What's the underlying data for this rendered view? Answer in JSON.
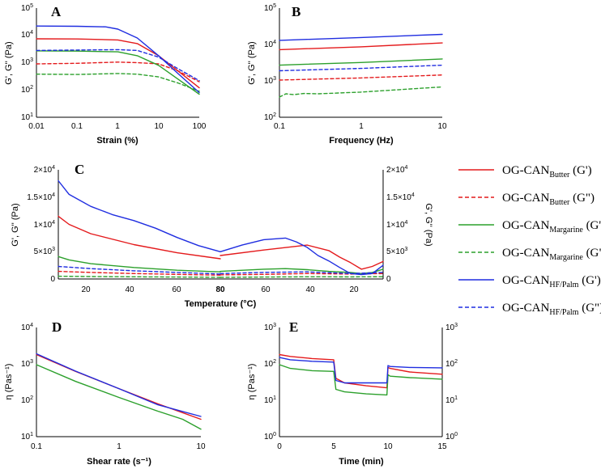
{
  "colors": {
    "butter": "#e41a1c",
    "margarine": "#2ca02c",
    "hfpalm": "#1f2de0"
  },
  "legend": [
    {
      "base": "OG-CAN",
      "sub": "Butter",
      "suffix": " (G')",
      "color": "#e41a1c",
      "dashed": false
    },
    {
      "base": "OG-CAN",
      "sub": "Butter",
      "suffix": " (G\")",
      "color": "#e41a1c",
      "dashed": true
    },
    {
      "base": "OG-CAN",
      "sub": "Margarine",
      "suffix": " (G')",
      "color": "#2ca02c",
      "dashed": false
    },
    {
      "base": "OG-CAN",
      "sub": "Margarine",
      "suffix": " (G\")",
      "color": "#2ca02c",
      "dashed": true
    },
    {
      "base": "OG-CAN",
      "sub": "HF/Palm",
      "suffix": " (G')",
      "color": "#1f2de0",
      "dashed": false
    },
    {
      "base": "OG-CAN",
      "sub": "HF/Palm",
      "suffix": " (G\")",
      "color": "#1f2de0",
      "dashed": true
    }
  ],
  "chart_data": [
    {
      "panel": "A",
      "type": "line",
      "xlabel": "Strain (%)",
      "ylabel": "G', G'' (Pa)",
      "xscale": "log",
      "yscale": "log",
      "xlim": [
        0.01,
        100
      ],
      "ylim": [
        10,
        100000
      ],
      "xticks": [
        "0.01",
        "0.1",
        "1",
        "10",
        "100"
      ],
      "yticks": [
        "10^1",
        "10^2",
        "10^3",
        "10^4",
        "10^5"
      ],
      "series": [
        {
          "name": "Butter G'",
          "color": "#e41a1c",
          "dashed": false,
          "x": [
            0.01,
            0.1,
            1,
            3,
            10,
            30,
            100
          ],
          "y": [
            7500,
            7400,
            6800,
            5000,
            1800,
            500,
            120
          ]
        },
        {
          "name": "Butter G\"",
          "color": "#e41a1c",
          "dashed": true,
          "x": [
            0.01,
            0.1,
            1,
            3,
            10,
            30,
            100
          ],
          "y": [
            900,
            950,
            1050,
            1000,
            900,
            500,
            200
          ]
        },
        {
          "name": "Margarine G'",
          "color": "#2ca02c",
          "dashed": false,
          "x": [
            0.01,
            0.1,
            1,
            3,
            10,
            30,
            100
          ],
          "y": [
            2700,
            2650,
            2500,
            1800,
            800,
            250,
            70
          ]
        },
        {
          "name": "Margarine G\"",
          "color": "#2ca02c",
          "dashed": true,
          "x": [
            0.01,
            0.1,
            1,
            3,
            10,
            30,
            100
          ],
          "y": [
            380,
            370,
            400,
            380,
            300,
            180,
            90
          ]
        },
        {
          "name": "HF/Palm G'",
          "color": "#1f2de0",
          "dashed": false,
          "x": [
            0.01,
            0.1,
            0.5,
            1,
            3,
            10,
            30,
            100
          ],
          "y": [
            22000,
            21500,
            20500,
            17000,
            8000,
            1800,
            400,
            80
          ]
        },
        {
          "name": "HF/Palm G\"",
          "color": "#1f2de0",
          "dashed": true,
          "x": [
            0.01,
            0.1,
            1,
            3,
            10,
            30,
            100
          ],
          "y": [
            2800,
            2900,
            3000,
            2800,
            1600,
            600,
            220
          ]
        }
      ]
    },
    {
      "panel": "B",
      "type": "line",
      "xlabel": "Frequency (Hz)",
      "ylabel": "G', G'' (Pa)",
      "xscale": "log",
      "yscale": "log",
      "xlim": [
        0.1,
        10
      ],
      "ylim": [
        100,
        100000
      ],
      "xticks": [
        "0.1",
        "1",
        "10"
      ],
      "yticks": [
        "10^2",
        "10^3",
        "10^4",
        "10^5"
      ],
      "series": [
        {
          "name": "Butter G'",
          "color": "#e41a1c",
          "dashed": false,
          "x": [
            0.1,
            1,
            10
          ],
          "y": [
            7200,
            8600,
            11000
          ]
        },
        {
          "name": "Butter G\"",
          "color": "#e41a1c",
          "dashed": true,
          "x": [
            0.1,
            1,
            10
          ],
          "y": [
            1050,
            1200,
            1450
          ]
        },
        {
          "name": "Margarine G'",
          "color": "#2ca02c",
          "dashed": false,
          "x": [
            0.1,
            0.15,
            1,
            10
          ],
          "y": [
            2700,
            2800,
            3200,
            4000
          ]
        },
        {
          "name": "Margarine G\"",
          "color": "#2ca02c",
          "dashed": true,
          "x": [
            0.1,
            0.12,
            0.15,
            0.2,
            0.3,
            1,
            10
          ],
          "y": [
            360,
            440,
            420,
            450,
            440,
            490,
            680
          ]
        },
        {
          "name": "HF/Palm G'",
          "color": "#1f2de0",
          "dashed": false,
          "x": [
            0.1,
            1,
            10
          ],
          "y": [
            13000,
            15500,
            19000
          ]
        },
        {
          "name": "HF/Palm G\"",
          "color": "#1f2de0",
          "dashed": true,
          "x": [
            0.1,
            1,
            10
          ],
          "y": [
            1900,
            2200,
            2700
          ]
        }
      ]
    },
    {
      "panel": "C",
      "type": "line",
      "xlabel": "Temperature (°C)",
      "ylabel": "G', G'' (Pa)",
      "ylabel_right": "G', G'' (Pa)",
      "description": "heating 5 to 80 °C then cooling 80 to 5 °C",
      "ylim": [
        0,
        20000
      ],
      "xticks": [
        "20",
        "40",
        "60",
        "80",
        "60",
        "40",
        "20"
      ],
      "yticks": [
        "0",
        "5×10^3",
        "1×10^4",
        "1.5×10^4",
        "2×10^4"
      ],
      "series": [
        {
          "name": "Butter G'",
          "color": "#e41a1c",
          "dashed": false,
          "heat_x": [
            5,
            10,
            20,
            40,
            60,
            80
          ],
          "heat_y": [
            11500,
            10000,
            8300,
            6300,
            4800,
            3700
          ],
          "cool_x": [
            80,
            60,
            40,
            30,
            25,
            20,
            15,
            10,
            5
          ],
          "cool_y": [
            4300,
            5300,
            6200,
            5200,
            4000,
            3000,
            1800,
            2300,
            3200
          ]
        },
        {
          "name": "Butter G\"",
          "color": "#e41a1c",
          "dashed": true,
          "heat_x": [
            5,
            20,
            40,
            60,
            80
          ],
          "heat_y": [
            1400,
            1200,
            1000,
            850,
            700
          ],
          "cool_x": [
            80,
            60,
            40,
            20,
            5
          ],
          "cool_y": [
            750,
            850,
            1000,
            900,
            1000
          ]
        },
        {
          "name": "Margarine G'",
          "color": "#2ca02c",
          "dashed": false,
          "heat_x": [
            5,
            10,
            20,
            40,
            60,
            80
          ],
          "heat_y": [
            4100,
            3500,
            2800,
            2100,
            1600,
            1300
          ],
          "cool_x": [
            80,
            60,
            50,
            40,
            30,
            20,
            15,
            10,
            5
          ],
          "cool_y": [
            1400,
            1800,
            1900,
            1700,
            1400,
            1200,
            1000,
            1200,
            1800
          ]
        },
        {
          "name": "Margarine G\"",
          "color": "#2ca02c",
          "dashed": true,
          "heat_x": [
            5,
            20,
            40,
            60,
            80
          ],
          "heat_y": [
            500,
            450,
            400,
            350,
            300
          ],
          "cool_x": [
            80,
            60,
            40,
            20,
            5
          ],
          "cool_y": [
            300,
            350,
            400,
            380,
            420
          ]
        },
        {
          "name": "HF/Palm G'",
          "color": "#1f2de0",
          "dashed": false,
          "heat_x": [
            5,
            10,
            20,
            30,
            40,
            50,
            60,
            70,
            80
          ],
          "heat_y": [
            18000,
            15500,
            13300,
            11800,
            10700,
            9300,
            7600,
            6100,
            5000
          ],
          "cool_x": [
            80,
            70,
            60,
            50,
            45,
            40,
            35,
            30,
            25,
            20,
            15,
            10,
            5
          ],
          "cool_y": [
            5000,
            6200,
            7200,
            7500,
            6800,
            5800,
            4300,
            3300,
            2100,
            1000,
            800,
            1000,
            2500
          ]
        },
        {
          "name": "HF/Palm G\"",
          "color": "#1f2de0",
          "dashed": true,
          "heat_x": [
            5,
            20,
            40,
            60,
            80
          ],
          "heat_y": [
            2300,
            1900,
            1500,
            1200,
            900
          ],
          "cool_x": [
            80,
            60,
            40,
            20,
            5
          ],
          "cool_y": [
            1000,
            1200,
            1300,
            1000,
            1200
          ]
        }
      ]
    },
    {
      "panel": "D",
      "type": "line",
      "xlabel": "Shear rate (s⁻¹)",
      "ylabel": "η (Pas⁻¹)",
      "xscale": "log",
      "yscale": "log",
      "xlim": [
        0.1,
        10
      ],
      "ylim": [
        10,
        10000
      ],
      "xticks": [
        "0.1",
        "1",
        "10"
      ],
      "yticks": [
        "10^1",
        "10^2",
        "10^3",
        "10^4"
      ],
      "series": [
        {
          "name": "Butter",
          "color": "#e41a1c",
          "dashed": false,
          "x": [
            0.1,
            0.3,
            1,
            3,
            10
          ],
          "y": [
            1800,
            620,
            210,
            80,
            30
          ]
        },
        {
          "name": "Margarine",
          "color": "#2ca02c",
          "dashed": false,
          "x": [
            0.1,
            0.3,
            1,
            3,
            6,
            10
          ],
          "y": [
            950,
            330,
            120,
            50,
            30,
            16
          ]
        },
        {
          "name": "HF/Palm",
          "color": "#1f2de0",
          "dashed": false,
          "x": [
            0.1,
            0.3,
            1,
            3,
            10
          ],
          "y": [
            1900,
            630,
            210,
            75,
            36
          ]
        }
      ]
    },
    {
      "panel": "E",
      "type": "line",
      "xlabel": "Time (min)",
      "ylabel": "η (Pas⁻¹)",
      "xscale": "linear",
      "yscale": "log",
      "xlim": [
        0,
        15
      ],
      "ylim": [
        1,
        1000
      ],
      "xticks": [
        "0",
        "5",
        "10",
        "15"
      ],
      "yticks": [
        "10^0",
        "10^1",
        "10^2",
        "10^3"
      ],
      "yticks_right": [
        "10^0",
        "10^1",
        "10^2",
        "10^3"
      ],
      "series": [
        {
          "name": "Butter",
          "color": "#e41a1c",
          "dashed": false,
          "x": [
            0,
            1,
            3,
            5,
            5.2,
            6,
            8,
            9.9,
            10,
            10.2,
            12,
            15
          ],
          "y": [
            180,
            160,
            140,
            130,
            40,
            30,
            25,
            22,
            80,
            75,
            60,
            52
          ]
        },
        {
          "name": "Margarine",
          "color": "#2ca02c",
          "dashed": false,
          "x": [
            0,
            1,
            3,
            5,
            5.2,
            6,
            8,
            9.9,
            10,
            10.2,
            12,
            15
          ],
          "y": [
            95,
            75,
            65,
            62,
            20,
            17,
            15,
            14,
            50,
            46,
            42,
            38
          ]
        },
        {
          "name": "HF/Palm",
          "color": "#1f2de0",
          "dashed": false,
          "x": [
            0,
            1,
            3,
            5,
            5.2,
            6,
            8,
            9.9,
            10,
            10.2,
            12,
            15
          ],
          "y": [
            150,
            130,
            118,
            112,
            35,
            30,
            30,
            30,
            90,
            85,
            80,
            78
          ]
        }
      ]
    }
  ]
}
